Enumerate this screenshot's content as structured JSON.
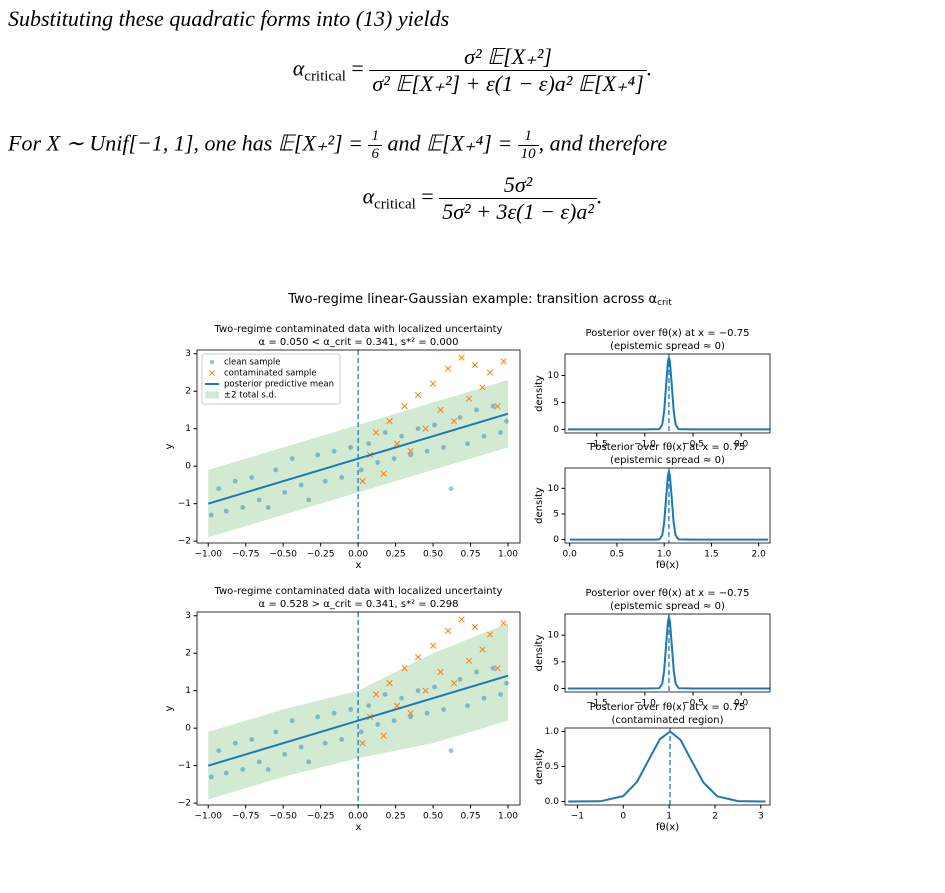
{
  "document": {
    "p1": "Substituting these quadratic forms into (13) yields",
    "eq1": {
      "lhs": "α",
      "lhs_sub": "critical",
      "relation": "=",
      "num": "σ² 𝔼[X₊²]",
      "den": "σ² 𝔼[X₊²] + ε(1 − ε)a² 𝔼[X₊⁴]",
      "end": "."
    },
    "p2": {
      "before": "For X ∼ Unif[−1, 1], one has 𝔼[X₊²] = ",
      "frac1": {
        "num": "1",
        "den": "6"
      },
      "middle": " and 𝔼[X₊⁴] = ",
      "frac2": {
        "num": "1",
        "den": "10"
      },
      "after": ", and therefore"
    },
    "eq2": {
      "lhs": "α",
      "lhs_sub": "critical",
      "relation": "=",
      "num": "5σ²",
      "den": "5σ² + 3ε(1 − ε)a²",
      "end": "."
    }
  },
  "figure": {
    "title": "Two-regime linear-Gaussian example: transition across α",
    "title_sub": "crit"
  },
  "chart_data": [
    {
      "type": "scatter",
      "title": "Two-regime contaminated data with localized uncertainty",
      "subtitle": "α = 0.050  <  α_crit = 0.341,  s*² = 0.000",
      "xlabel": "x",
      "ylabel": "y",
      "xlim": [
        -1.075,
        1.08
      ],
      "ylim": [
        -2.05,
        3.1
      ],
      "xticks": [
        {
          "value": -1,
          "label": "−1.00"
        },
        {
          "value": -0.75,
          "label": "−0.75"
        },
        {
          "value": -0.5,
          "label": "−0.50"
        },
        {
          "value": -0.25,
          "label": "−0.25"
        },
        {
          "value": 0,
          "label": "0.00"
        },
        {
          "value": 0.25,
          "label": "0.25"
        },
        {
          "value": 0.5,
          "label": "0.50"
        },
        {
          "value": 0.75,
          "label": "0.75"
        },
        {
          "value": 1,
          "label": "1.00"
        }
      ],
      "yticks": [
        {
          "value": -2,
          "label": "−2"
        },
        {
          "value": -1,
          "label": "−1"
        },
        0,
        1,
        2,
        3
      ],
      "vline_x": 0,
      "legend": "upper left",
      "series": [
        {
          "name": "clean sample",
          "kind": "scatter",
          "marker": "o",
          "color": "#1f77b4",
          "x": [
            -0.98,
            -0.93,
            -0.88,
            -0.82,
            -0.77,
            -0.71,
            -0.66,
            -0.6,
            -0.55,
            -0.49,
            -0.44,
            -0.38,
            -0.33,
            -0.27,
            -0.22,
            -0.16,
            -0.11,
            -0.05,
            0.02,
            0.07,
            0.13,
            0.18,
            0.24,
            0.29,
            0.35,
            0.4,
            0.46,
            0.51,
            0.57,
            0.62,
            0.68,
            0.73,
            0.79,
            0.84,
            0.9,
            0.95,
            0.99
          ],
          "values": [
            -1.3,
            -0.6,
            -1.2,
            -0.4,
            -1.1,
            -0.3,
            -0.9,
            -1.1,
            -0.1,
            -0.7,
            0.2,
            -0.5,
            -0.9,
            0.3,
            -0.4,
            0.4,
            -0.3,
            0.5,
            -0.1,
            0.6,
            0.1,
            0.9,
            0.2,
            0.8,
            0.3,
            1.0,
            0.4,
            1.1,
            0.5,
            -0.6,
            1.3,
            0.6,
            1.5,
            0.8,
            1.6,
            0.9,
            1.2
          ]
        },
        {
          "name": "contaminated sample",
          "kind": "scatter",
          "marker": "x",
          "color": "#ff7f0e",
          "x": [
            0.03,
            0.08,
            0.12,
            0.17,
            0.21,
            0.26,
            0.31,
            0.35,
            0.4,
            0.45,
            0.5,
            0.55,
            0.6,
            0.64,
            0.69,
            0.74,
            0.78,
            0.83,
            0.88,
            0.93,
            0.97
          ],
          "values": [
            -0.4,
            0.3,
            0.9,
            -0.2,
            1.2,
            0.6,
            1.6,
            0.4,
            1.9,
            1.0,
            2.2,
            1.5,
            2.6,
            1.2,
            2.9,
            1.8,
            2.7,
            2.1,
            2.5,
            1.6,
            2.8
          ]
        },
        {
          "name": "posterior predictive mean",
          "kind": "line",
          "color": "#1f77b4",
          "x": [
            -1,
            1
          ],
          "values": [
            -1.0,
            1.4
          ]
        },
        {
          "name": "±2 total s.d.",
          "kind": "band",
          "color": "#2ca02c",
          "x": [
            -1,
            -0.5,
            0,
            0.5,
            1
          ],
          "lower": [
            -1.9,
            -1.3,
            -0.7,
            -0.1,
            0.5
          ],
          "upper": [
            -0.1,
            0.5,
            1.1,
            1.7,
            2.3
          ]
        }
      ]
    },
    {
      "type": "line",
      "title": "Posterior over fθ(x) at x = −0.75",
      "subtitle": "(epistemic spread ≈ 0)",
      "ylabel": "density",
      "xlim": [
        -1.83,
        0.3
      ],
      "ylim": [
        -0.665,
        13.97
      ],
      "xticks": [
        {
          "value": -1.5,
          "label": "−1.5"
        },
        {
          "value": -1,
          "label": "−1.0"
        },
        {
          "value": -0.5,
          "label": "−0.5"
        },
        {
          "value": 0,
          "label": "0.0"
        }
      ],
      "yticks": [
        0,
        5,
        10
      ],
      "vline_x": -0.75,
      "color": "#1f77b4",
      "x": [
        -1.8,
        -1.0,
        -0.85,
        -0.82,
        -0.8,
        -0.78,
        -0.76,
        -0.75,
        -0.74,
        -0.72,
        -0.7,
        -0.68,
        -0.65,
        -0.5,
        0.3
      ],
      "values": [
        0,
        0,
        0.05,
        0.88,
        3.3,
        8.07,
        12.6,
        13.3,
        12.6,
        8.07,
        3.3,
        0.88,
        0.05,
        0,
        0
      ]
    },
    {
      "type": "line",
      "title": "Posterior over fθ(x) at x = 0.75",
      "subtitle": "(epistemic spread ≈ 0)",
      "xlabel": "fθ(x)",
      "ylabel": "density",
      "xlim": [
        -0.05,
        2.12
      ],
      "ylim": [
        -0.665,
        13.97
      ],
      "xticks": [
        {
          "value": 0,
          "label": "0.0"
        },
        {
          "value": 0.5,
          "label": "0.5"
        },
        {
          "value": 1,
          "label": "1.0"
        },
        {
          "value": 1.5,
          "label": "1.5"
        },
        {
          "value": 2,
          "label": "2.0"
        }
      ],
      "yticks": [
        0,
        5,
        10
      ],
      "vline_x": 1.05,
      "color": "#1f77b4",
      "x": [
        0.0,
        0.9,
        0.95,
        0.98,
        1.0,
        1.02,
        1.04,
        1.05,
        1.06,
        1.08,
        1.1,
        1.12,
        1.15,
        1.3,
        2.1
      ],
      "values": [
        0,
        0,
        0.05,
        0.88,
        3.3,
        8.07,
        12.6,
        13.3,
        12.6,
        8.07,
        3.3,
        0.88,
        0.05,
        0,
        0
      ]
    },
    {
      "type": "scatter",
      "title": "Two-regime contaminated data with localized uncertainty",
      "subtitle": "α = 0.528  >  α_crit = 0.341,  s*² = 0.298",
      "xlabel": "x",
      "ylabel": "y",
      "xlim": [
        -1.075,
        1.08
      ],
      "ylim": [
        -2.05,
        3.1
      ],
      "xticks": [
        {
          "value": -1,
          "label": "−1.00"
        },
        {
          "value": -0.75,
          "label": "−0.75"
        },
        {
          "value": -0.5,
          "label": "−0.50"
        },
        {
          "value": -0.25,
          "label": "−0.25"
        },
        {
          "value": 0,
          "label": "0.00"
        },
        {
          "value": 0.25,
          "label": "0.25"
        },
        {
          "value": 0.5,
          "label": "0.50"
        },
        {
          "value": 0.75,
          "label": "0.75"
        },
        {
          "value": 1,
          "label": "1.00"
        }
      ],
      "yticks": [
        {
          "value": -2,
          "label": "−2"
        },
        {
          "value": -1,
          "label": "−1"
        },
        0,
        1,
        2,
        3
      ],
      "vline_x": 0,
      "series": [
        {
          "kind": "scatter",
          "marker": "o",
          "color": "#1f77b4",
          "x": [
            -0.98,
            -0.93,
            -0.88,
            -0.82,
            -0.77,
            -0.71,
            -0.66,
            -0.6,
            -0.55,
            -0.49,
            -0.44,
            -0.38,
            -0.33,
            -0.27,
            -0.22,
            -0.16,
            -0.11,
            -0.05,
            0.02,
            0.07,
            0.13,
            0.18,
            0.24,
            0.29,
            0.35,
            0.4,
            0.46,
            0.51,
            0.57,
            0.62,
            0.68,
            0.73,
            0.79,
            0.84,
            0.9,
            0.95,
            0.99
          ],
          "values": [
            -1.3,
            -0.6,
            -1.2,
            -0.4,
            -1.1,
            -0.3,
            -0.9,
            -1.1,
            -0.1,
            -0.7,
            0.2,
            -0.5,
            -0.9,
            0.3,
            -0.4,
            0.4,
            -0.3,
            0.5,
            -0.1,
            0.6,
            0.1,
            0.9,
            0.2,
            0.8,
            0.3,
            1.0,
            0.4,
            1.1,
            0.5,
            -0.6,
            1.3,
            0.6,
            1.5,
            0.8,
            1.6,
            0.9,
            1.2
          ]
        },
        {
          "kind": "scatter",
          "marker": "x",
          "color": "#ff7f0e",
          "x": [
            0.03,
            0.08,
            0.12,
            0.17,
            0.21,
            0.26,
            0.31,
            0.35,
            0.4,
            0.45,
            0.5,
            0.55,
            0.6,
            0.64,
            0.69,
            0.74,
            0.78,
            0.83,
            0.88,
            0.93,
            0.97
          ],
          "values": [
            -0.4,
            0.3,
            0.9,
            -0.2,
            1.2,
            0.6,
            1.6,
            0.4,
            1.9,
            1.0,
            2.2,
            1.5,
            2.6,
            1.2,
            2.9,
            1.8,
            2.7,
            2.1,
            2.5,
            1.6,
            2.8
          ]
        },
        {
          "kind": "line",
          "color": "#1f77b4",
          "x": [
            -1,
            1
          ],
          "values": [
            -1.0,
            1.4
          ]
        },
        {
          "kind": "band",
          "color": "#2ca02c",
          "x": [
            -1,
            -0.5,
            0,
            0.5,
            1
          ],
          "lower": [
            -1.9,
            -1.3,
            -0.8,
            -0.4,
            0.2
          ],
          "upper": [
            -0.1,
            0.5,
            1.0,
            2.0,
            2.8
          ]
        }
      ]
    },
    {
      "type": "line",
      "title": "Posterior over fθ(x) at x = −0.75",
      "subtitle": "(epistemic spread ≈ 0)",
      "ylabel": "density",
      "xlim": [
        -1.83,
        0.3
      ],
      "ylim": [
        -0.665,
        13.97
      ],
      "xticks": [
        {
          "value": -1.5,
          "label": "−1.5"
        },
        {
          "value": -1,
          "label": "−1.0"
        },
        {
          "value": -0.5,
          "label": "−0.5"
        },
        {
          "value": 0,
          "label": "0.0"
        }
      ],
      "yticks": [
        0,
        5,
        10
      ],
      "vline_x": -0.75,
      "color": "#1f77b4",
      "x": [
        -1.8,
        -1.0,
        -0.85,
        -0.82,
        -0.8,
        -0.78,
        -0.76,
        -0.75,
        -0.74,
        -0.72,
        -0.7,
        -0.68,
        -0.65,
        -0.5,
        0.3
      ],
      "values": [
        0,
        0,
        0.05,
        0.88,
        3.3,
        8.07,
        12.6,
        13.3,
        12.6,
        8.07,
        3.3,
        0.88,
        0.05,
        0,
        0
      ]
    },
    {
      "type": "line",
      "title": "Posterior over fθ(x) at x = 0.75",
      "subtitle": "(contaminated region)",
      "xlabel": "fθ(x)",
      "ylabel": "density",
      "xlim": [
        -1.27,
        3.2
      ],
      "ylim": [
        -0.05,
        1.05
      ],
      "xticks": [
        {
          "value": -1,
          "label": "−1"
        },
        0,
        1,
        2,
        3
      ],
      "yticks": [
        {
          "value": 0,
          "label": "0.0"
        },
        {
          "value": 0.5,
          "label": "0.5"
        },
        {
          "value": 1,
          "label": "1.0"
        }
      ],
      "vline_x": 1.02,
      "color": "#1f77b4",
      "x": [
        -1.2,
        -0.5,
        0,
        0.3,
        0.6,
        0.8,
        1.02,
        1.25,
        1.45,
        1.75,
        2.05,
        2.5,
        3.1
      ],
      "values": [
        0,
        0.003,
        0.077,
        0.28,
        0.65,
        0.89,
        1.0,
        0.88,
        0.63,
        0.27,
        0.073,
        0.005,
        0
      ]
    }
  ]
}
